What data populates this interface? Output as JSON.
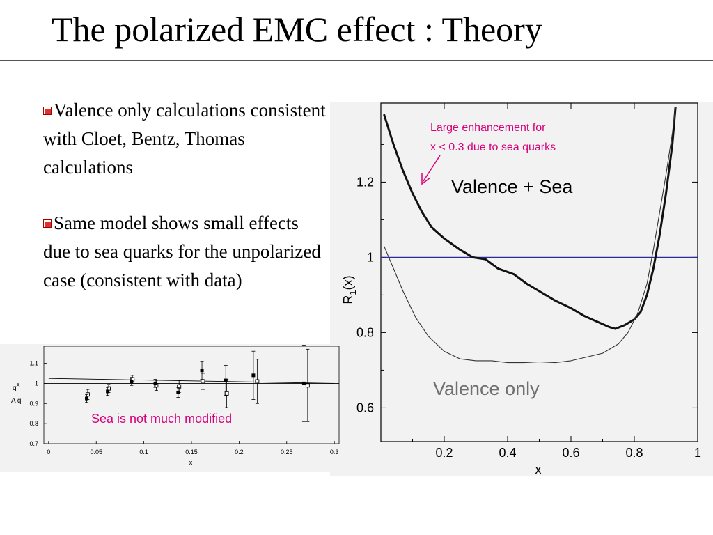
{
  "slide": {
    "title": "The polarized EMC effect : Theory",
    "bullets": [
      "Valence only calculations consistent with Cloet, Bentz, Thomas calculations",
      "Same model shows small effects due to sea quarks for the unpolarized case (consistent with data)"
    ]
  },
  "chart_data": [
    {
      "type": "line",
      "ylabel_main": "R",
      "ylabel_sub": "1",
      "ylabel_tail": "(x)",
      "xlabel": "x",
      "xlim": [
        0.0,
        1.0
      ],
      "ylim": [
        0.51,
        1.41
      ],
      "x_ticks": [
        "0.2",
        "0.4",
        "0.6",
        "0.8",
        "1"
      ],
      "y_ticks": [
        "0.6",
        "0.8",
        "1",
        "1.2"
      ],
      "reference_line": 1.0,
      "series": [
        {
          "name": "Valence + Sea",
          "color": "#111111",
          "points": [
            [
              0.01,
              1.38
            ],
            [
              0.04,
              1.3
            ],
            [
              0.07,
              1.23
            ],
            [
              0.1,
              1.17
            ],
            [
              0.13,
              1.12
            ],
            [
              0.16,
              1.08
            ],
            [
              0.2,
              1.05
            ],
            [
              0.25,
              1.02
            ],
            [
              0.29,
              1.0
            ],
            [
              0.33,
              0.995
            ],
            [
              0.37,
              0.97
            ],
            [
              0.42,
              0.955
            ],
            [
              0.46,
              0.93
            ],
            [
              0.5,
              0.91
            ],
            [
              0.55,
              0.885
            ],
            [
              0.6,
              0.865
            ],
            [
              0.64,
              0.845
            ],
            [
              0.68,
              0.83
            ],
            [
              0.72,
              0.815
            ],
            [
              0.74,
              0.81
            ],
            [
              0.77,
              0.82
            ],
            [
              0.8,
              0.835
            ],
            [
              0.82,
              0.855
            ],
            [
              0.84,
              0.9
            ],
            [
              0.86,
              0.97
            ],
            [
              0.88,
              1.06
            ],
            [
              0.9,
              1.17
            ],
            [
              0.92,
              1.3
            ],
            [
              0.93,
              1.4
            ]
          ]
        },
        {
          "name": "Valence only",
          "color": "#333333",
          "points": [
            [
              0.01,
              1.03
            ],
            [
              0.04,
              0.97
            ],
            [
              0.07,
              0.91
            ],
            [
              0.11,
              0.84
            ],
            [
              0.15,
              0.79
            ],
            [
              0.2,
              0.75
            ],
            [
              0.25,
              0.73
            ],
            [
              0.3,
              0.725
            ],
            [
              0.35,
              0.725
            ],
            [
              0.4,
              0.72
            ],
            [
              0.45,
              0.72
            ],
            [
              0.5,
              0.722
            ],
            [
              0.55,
              0.72
            ],
            [
              0.6,
              0.725
            ],
            [
              0.65,
              0.735
            ],
            [
              0.7,
              0.745
            ],
            [
              0.75,
              0.77
            ],
            [
              0.78,
              0.8
            ],
            [
              0.81,
              0.85
            ],
            [
              0.84,
              0.93
            ],
            [
              0.86,
              1.02
            ],
            [
              0.88,
              1.12
            ],
            [
              0.9,
              1.22
            ],
            [
              0.92,
              1.33
            ],
            [
              0.93,
              1.4
            ]
          ]
        }
      ],
      "annotations": [
        {
          "text": "Large enhancement for",
          "color": "#d6007a"
        },
        {
          "text": "x < 0.3 due to sea quarks",
          "color": "#d6007a"
        }
      ],
      "series_labels": [
        "Valence + Sea",
        "Valence only"
      ]
    },
    {
      "type": "scatter",
      "ylabel_main": "q",
      "ylabel_sup": "A",
      "ylabel_denom": "A q",
      "xlabel": "x",
      "xlim": [
        -0.005,
        0.305
      ],
      "ylim": [
        0.7,
        1.185
      ],
      "x_ticks": [
        "0",
        "0.05",
        "0.1",
        "0.15",
        "0.2",
        "0.25",
        "0.3"
      ],
      "y_ticks": [
        "0.7",
        "0.8",
        "0.9",
        "1",
        "1.1"
      ],
      "reference_line": 1.0,
      "trend_line": [
        [
          0.0,
          1.025
        ],
        [
          0.3,
          1.0
        ]
      ],
      "filled_points": [
        {
          "x": 0.04,
          "y": 0.925,
          "err": 0.02
        },
        {
          "x": 0.062,
          "y": 0.96,
          "err": 0.02
        },
        {
          "x": 0.087,
          "y": 1.01,
          "err": 0.02
        },
        {
          "x": 0.112,
          "y": 1.0,
          "err": 0.02
        },
        {
          "x": 0.136,
          "y": 0.955,
          "err": 0.025
        },
        {
          "x": 0.161,
          "y": 1.065,
          "err": 0.045
        },
        {
          "x": 0.186,
          "y": 1.015,
          "err": 0.075
        },
        {
          "x": 0.215,
          "y": 1.04,
          "err": 0.12
        },
        {
          "x": 0.268,
          "y": 1.0,
          "err": 0.19
        }
      ],
      "open_points": [
        {
          "x": 0.041,
          "y": 0.945,
          "err": 0.025
        },
        {
          "x": 0.063,
          "y": 0.975,
          "err": 0.02
        },
        {
          "x": 0.088,
          "y": 1.02,
          "err": 0.02
        },
        {
          "x": 0.113,
          "y": 0.99,
          "err": 0.025
        },
        {
          "x": 0.137,
          "y": 0.985,
          "err": 0.03
        },
        {
          "x": 0.162,
          "y": 1.01,
          "err": 0.04
        },
        {
          "x": 0.187,
          "y": 0.95,
          "err": 0.07
        },
        {
          "x": 0.219,
          "y": 1.01,
          "err": 0.11
        },
        {
          "x": 0.272,
          "y": 0.99,
          "err": 0.18
        }
      ],
      "annotations": [
        {
          "text": "Sea is not much modified",
          "color": "#d6007a"
        }
      ]
    }
  ]
}
